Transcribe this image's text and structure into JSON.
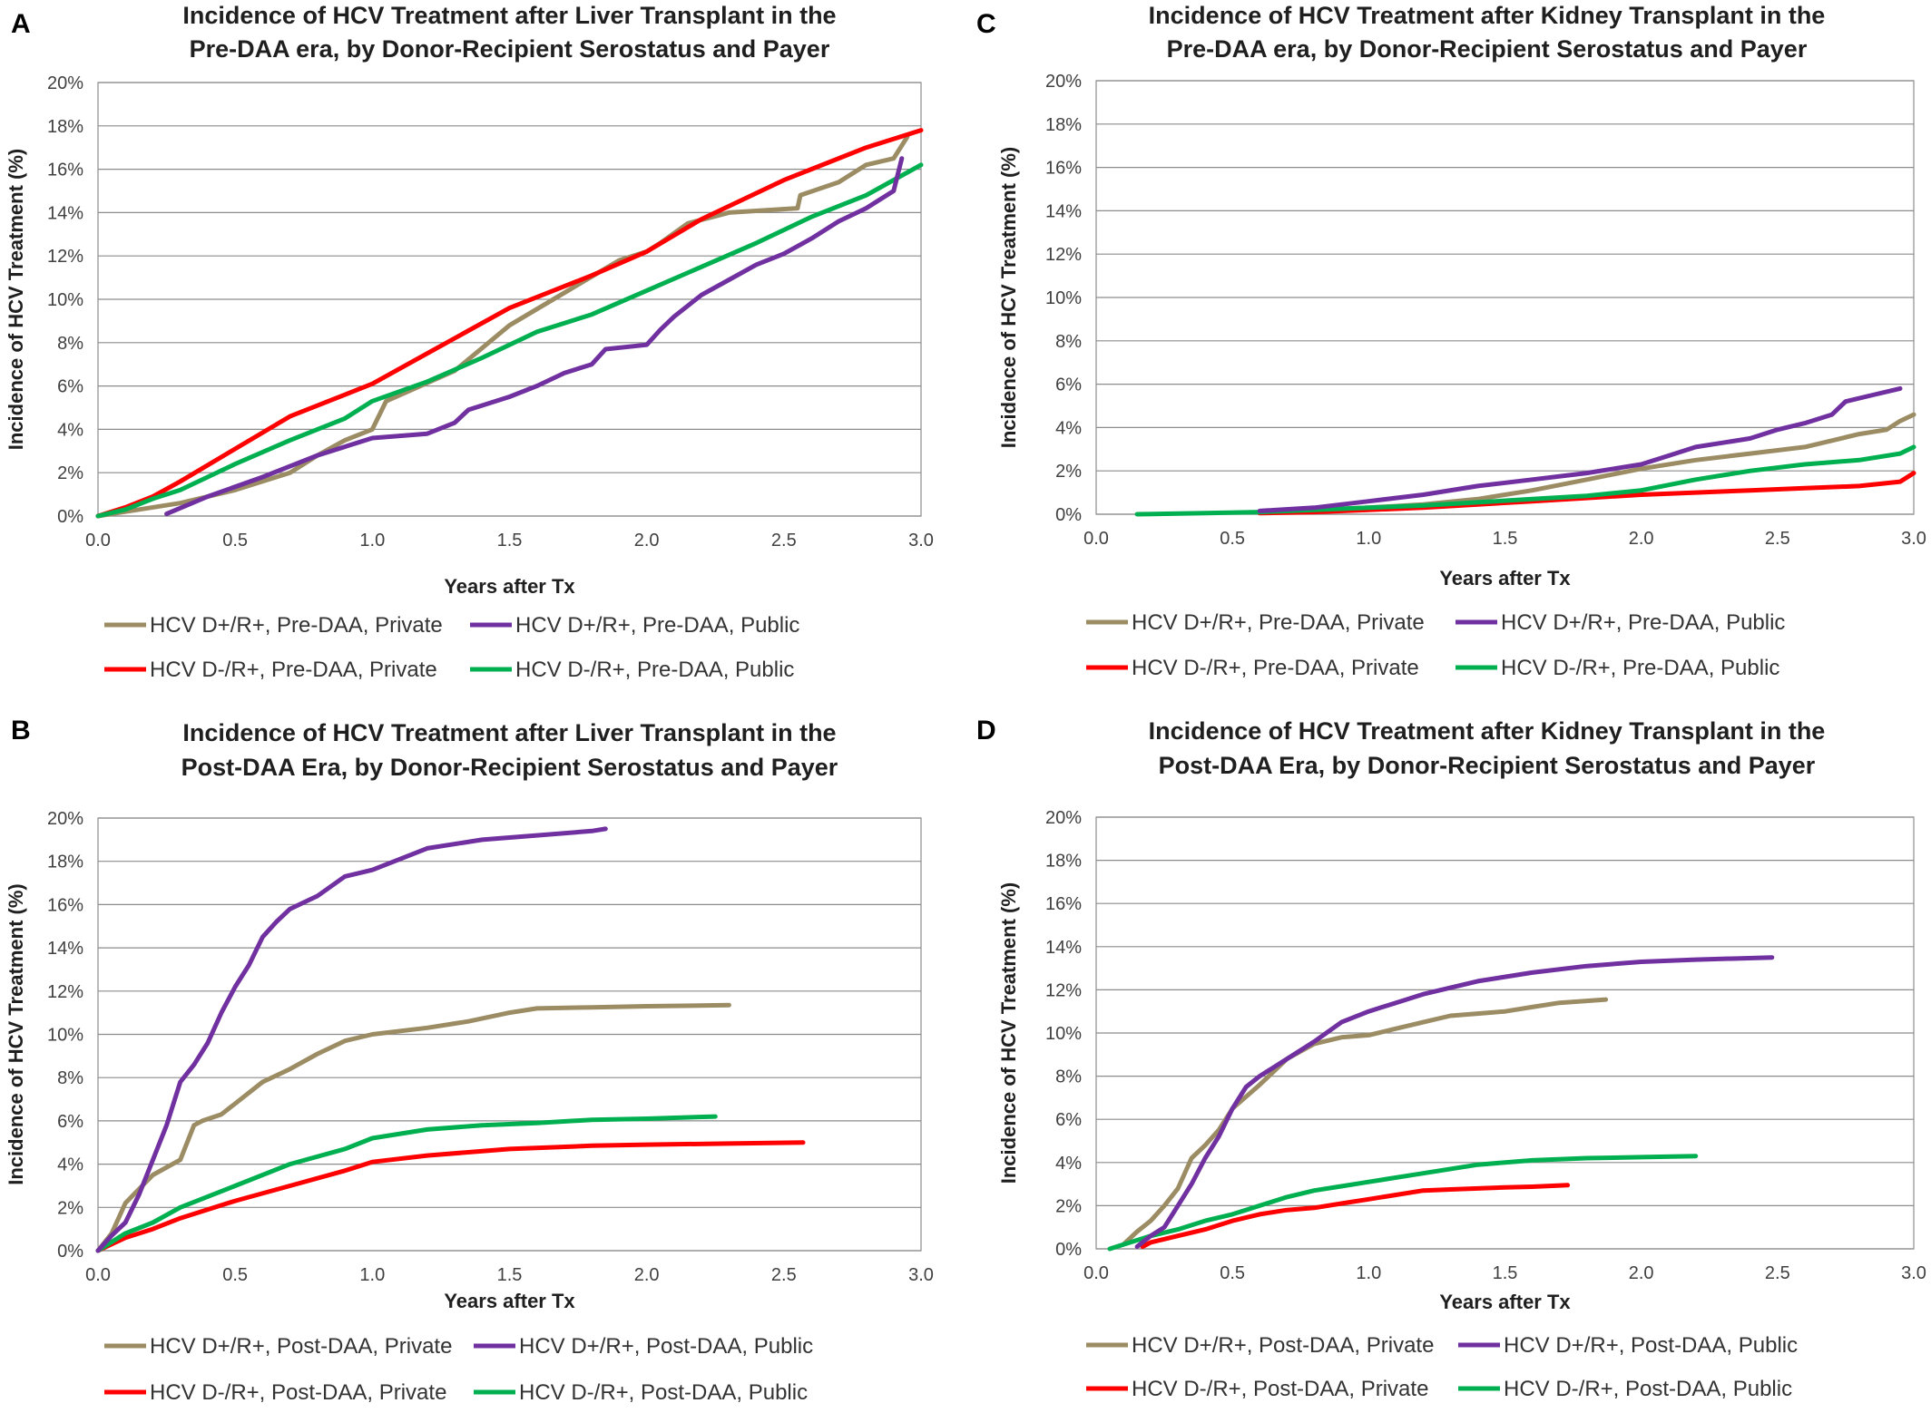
{
  "colors": {
    "tan": "#9b8c64",
    "purple": "#7030a0",
    "red": "#ff0000",
    "green": "#00b050"
  },
  "chart_data": [
    {
      "panel": "A",
      "type": "line",
      "title": [
        "Incidence of HCV Treatment after Liver Transplant in the",
        "Pre-DAA era, by Donor-Recipient Serostatus and Payer"
      ],
      "xlabel": "Years after Tx",
      "ylabel": "Incidence of HCV Treatment (%)",
      "xlim": [
        0,
        3
      ],
      "ylim": [
        0,
        20
      ],
      "xticks": [
        "0.0",
        "0.5",
        "1.0",
        "1.5",
        "2.0",
        "2.5",
        "3.0"
      ],
      "yticks": [
        "0%",
        "2%",
        "4%",
        "6%",
        "8%",
        "10%",
        "12%",
        "14%",
        "16%",
        "18%",
        "20%"
      ],
      "grid": true,
      "legend_position": "bottom",
      "series": [
        {
          "name": "HCV D+/R+, Pre-DAA, Private",
          "color": "tan",
          "x": [
            0,
            0.1,
            0.3,
            0.5,
            0.7,
            0.8,
            0.9,
            1.0,
            1.05,
            1.3,
            1.5,
            1.7,
            1.9,
            2.0,
            2.05,
            2.15,
            2.3,
            2.55,
            2.56,
            2.7,
            2.8,
            2.9,
            2.95
          ],
          "y": [
            0,
            0.2,
            0.6,
            1.2,
            2.0,
            2.8,
            3.5,
            4.0,
            5.3,
            6.7,
            8.8,
            10.3,
            11.8,
            12.2,
            12.6,
            13.5,
            14.0,
            14.2,
            14.8,
            15.4,
            16.2,
            16.5,
            17.5
          ]
        },
        {
          "name": "HCV D+/R+, Pre-DAA, Public",
          "color": "purple",
          "x": [
            0.25,
            0.4,
            0.6,
            0.8,
            1.0,
            1.2,
            1.3,
            1.35,
            1.5,
            1.6,
            1.7,
            1.8,
            1.85,
            2.0,
            2.05,
            2.1,
            2.2,
            2.3,
            2.4,
            2.5,
            2.6,
            2.7,
            2.8,
            2.9,
            2.93
          ],
          "y": [
            0.1,
            0.9,
            1.8,
            2.8,
            3.6,
            3.8,
            4.3,
            4.9,
            5.5,
            6.0,
            6.6,
            7.0,
            7.7,
            7.9,
            8.6,
            9.2,
            10.2,
            10.9,
            11.6,
            12.1,
            12.8,
            13.6,
            14.2,
            15.0,
            16.5
          ]
        },
        {
          "name": "HCV D-/R+, Pre-DAA, Private",
          "color": "red",
          "x": [
            0,
            0.1,
            0.2,
            0.3,
            0.5,
            0.7,
            1.0,
            1.3,
            1.5,
            1.8,
            2.0,
            2.2,
            2.5,
            2.8,
            3.0
          ],
          "y": [
            0,
            0.4,
            0.9,
            1.6,
            3.1,
            4.6,
            6.1,
            8.2,
            9.6,
            11.1,
            12.2,
            13.7,
            15.5,
            17.0,
            17.8
          ]
        },
        {
          "name": "HCV D-/R+, Pre-DAA, Public",
          "color": "green",
          "x": [
            0,
            0.1,
            0.2,
            0.3,
            0.5,
            0.7,
            0.9,
            1.0,
            1.2,
            1.4,
            1.6,
            1.8,
            2.0,
            2.2,
            2.4,
            2.6,
            2.8,
            3.0
          ],
          "y": [
            0,
            0.3,
            0.8,
            1.2,
            2.4,
            3.5,
            4.5,
            5.3,
            6.2,
            7.3,
            8.5,
            9.3,
            10.4,
            11.5,
            12.6,
            13.8,
            14.8,
            16.2
          ]
        }
      ]
    },
    {
      "panel": "B",
      "type": "line",
      "title": [
        "Incidence of HCV Treatment after Liver Transplant in the",
        "Post-DAA Era, by Donor-Recipient Serostatus and Payer"
      ],
      "xlabel": "Years after Tx",
      "ylabel": "Incidence of HCV Treatment (%)",
      "xlim": [
        0,
        3
      ],
      "ylim": [
        0,
        20
      ],
      "xticks": [
        "0.0",
        "0.5",
        "1.0",
        "1.5",
        "2.0",
        "2.5",
        "3.0"
      ],
      "yticks": [
        "0%",
        "2%",
        "4%",
        "6%",
        "8%",
        "10%",
        "12%",
        "14%",
        "16%",
        "18%",
        "20%"
      ],
      "grid": true,
      "legend_position": "bottom",
      "series": [
        {
          "name": "HCV D+/R+, Post-DAA, Private",
          "color": "tan",
          "x": [
            0,
            0.05,
            0.1,
            0.2,
            0.3,
            0.35,
            0.38,
            0.45,
            0.5,
            0.6,
            0.7,
            0.8,
            0.9,
            1.0,
            1.2,
            1.35,
            1.5,
            1.6,
            1.8,
            2.0,
            2.3
          ],
          "y": [
            0,
            0.8,
            2.2,
            3.5,
            4.2,
            5.8,
            6.0,
            6.3,
            6.8,
            7.8,
            8.4,
            9.1,
            9.7,
            10.0,
            10.3,
            10.6,
            11.0,
            11.2,
            11.25,
            11.3,
            11.35
          ]
        },
        {
          "name": "HCV D+/R+, Post-DAA, Public",
          "color": "purple",
          "x": [
            0,
            0.05,
            0.1,
            0.15,
            0.2,
            0.25,
            0.3,
            0.35,
            0.4,
            0.45,
            0.5,
            0.55,
            0.6,
            0.65,
            0.7,
            0.8,
            0.9,
            1.0,
            1.1,
            1.2,
            1.4,
            1.6,
            1.8,
            1.85
          ],
          "y": [
            0,
            0.7,
            1.3,
            2.6,
            4.2,
            5.8,
            7.8,
            8.6,
            9.6,
            11.0,
            12.2,
            13.2,
            14.5,
            15.2,
            15.8,
            16.4,
            17.3,
            17.6,
            18.1,
            18.6,
            19.0,
            19.2,
            19.4,
            19.5
          ]
        },
        {
          "name": "HCV D-/R+, Post-DAA, Private",
          "color": "red",
          "x": [
            0,
            0.1,
            0.2,
            0.3,
            0.5,
            0.7,
            0.9,
            1.0,
            1.2,
            1.5,
            1.8,
            2.0,
            2.3,
            2.57
          ],
          "y": [
            0,
            0.6,
            1.0,
            1.5,
            2.3,
            3.0,
            3.7,
            4.1,
            4.4,
            4.7,
            4.85,
            4.9,
            4.95,
            5.0
          ]
        },
        {
          "name": "HCV D-/R+, Post-DAA, Public",
          "color": "green",
          "x": [
            0,
            0.1,
            0.2,
            0.3,
            0.5,
            0.7,
            0.9,
            1.0,
            1.2,
            1.4,
            1.6,
            1.8,
            2.0,
            2.25
          ],
          "y": [
            0,
            0.8,
            1.3,
            2.0,
            3.0,
            4.0,
            4.7,
            5.2,
            5.6,
            5.8,
            5.9,
            6.05,
            6.1,
            6.2
          ]
        }
      ]
    },
    {
      "panel": "C",
      "type": "line",
      "title": [
        "Incidence of HCV Treatment after Kidney Transplant in the",
        "Pre-DAA era, by Donor-Recipient Serostatus and Payer"
      ],
      "xlabel": "Years after Tx",
      "ylabel": "Incidence of HCV Treatment (%)",
      "xlim": [
        0,
        3
      ],
      "ylim": [
        0,
        20
      ],
      "xticks": [
        "0.0",
        "0.5",
        "1.0",
        "1.5",
        "2.0",
        "2.5",
        "3.0"
      ],
      "yticks": [
        "0%",
        "2%",
        "4%",
        "6%",
        "8%",
        "10%",
        "12%",
        "14%",
        "16%",
        "18%",
        "20%"
      ],
      "grid": true,
      "legend_position": "bottom",
      "series": [
        {
          "name": "HCV D+/R+, Pre-DAA, Private",
          "color": "tan",
          "x": [
            0.6,
            0.8,
            1.0,
            1.2,
            1.4,
            1.6,
            1.8,
            2.0,
            2.2,
            2.4,
            2.6,
            2.8,
            2.9,
            2.95,
            3.0
          ],
          "y": [
            0.1,
            0.2,
            0.3,
            0.45,
            0.7,
            1.1,
            1.6,
            2.1,
            2.5,
            2.8,
            3.1,
            3.7,
            3.9,
            4.3,
            4.6
          ]
        },
        {
          "name": "HCV D+/R+, Pre-DAA, Public",
          "color": "purple",
          "x": [
            0.6,
            0.8,
            1.0,
            1.2,
            1.4,
            1.6,
            1.8,
            2.0,
            2.1,
            2.2,
            2.4,
            2.5,
            2.6,
            2.7,
            2.75,
            2.85,
            2.95
          ],
          "y": [
            0.15,
            0.3,
            0.6,
            0.9,
            1.3,
            1.6,
            1.9,
            2.3,
            2.7,
            3.1,
            3.5,
            3.9,
            4.2,
            4.6,
            5.2,
            5.5,
            5.8
          ]
        },
        {
          "name": "HCV D-/R+, Pre-DAA, Private",
          "color": "red",
          "x": [
            0.6,
            0.8,
            1.0,
            1.2,
            1.4,
            1.6,
            1.8,
            2.0,
            2.2,
            2.4,
            2.6,
            2.8,
            2.95,
            3.0
          ],
          "y": [
            0.05,
            0.1,
            0.2,
            0.3,
            0.45,
            0.6,
            0.75,
            0.9,
            1.0,
            1.1,
            1.2,
            1.3,
            1.5,
            1.9
          ]
        },
        {
          "name": "HCV D-/R+, Pre-DAA, Public",
          "color": "green",
          "x": [
            0.15,
            0.4,
            0.6,
            0.8,
            1.0,
            1.2,
            1.4,
            1.6,
            1.8,
            2.0,
            2.2,
            2.4,
            2.6,
            2.8,
            2.95,
            3.0
          ],
          "y": [
            0,
            0.05,
            0.1,
            0.2,
            0.3,
            0.4,
            0.55,
            0.7,
            0.85,
            1.1,
            1.6,
            2.0,
            2.3,
            2.5,
            2.8,
            3.1
          ]
        }
      ]
    },
    {
      "panel": "D",
      "type": "line",
      "title": [
        "Incidence of HCV Treatment after Kidney Transplant in the",
        "Post-DAA Era, by Donor-Recipient Serostatus and Payer"
      ],
      "xlabel": "Years after Tx",
      "ylabel": "Incidence of HCV Treatment (%)",
      "xlim": [
        0,
        3
      ],
      "ylim": [
        0,
        20
      ],
      "xticks": [
        "0.0",
        "0.5",
        "1.0",
        "1.5",
        "2.0",
        "2.5",
        "3.0"
      ],
      "yticks": [
        "0%",
        "2%",
        "4%",
        "6%",
        "8%",
        "10%",
        "12%",
        "14%",
        "16%",
        "18%",
        "20%"
      ],
      "grid": true,
      "legend_position": "bottom",
      "series": [
        {
          "name": "HCV D+/R+, Post-DAA, Private",
          "color": "tan",
          "x": [
            0.1,
            0.15,
            0.2,
            0.25,
            0.3,
            0.35,
            0.4,
            0.45,
            0.5,
            0.6,
            0.7,
            0.8,
            0.9,
            1.0,
            1.1,
            1.2,
            1.3,
            1.4,
            1.5,
            1.6,
            1.7,
            1.87
          ],
          "y": [
            0.2,
            0.8,
            1.3,
            2.0,
            2.8,
            4.2,
            4.8,
            5.5,
            6.5,
            7.6,
            8.8,
            9.5,
            9.8,
            9.9,
            10.2,
            10.5,
            10.8,
            10.9,
            11.0,
            11.2,
            11.4,
            11.55
          ]
        },
        {
          "name": "HCV D+/R+, Post-DAA, Public",
          "color": "purple",
          "x": [
            0.15,
            0.2,
            0.25,
            0.3,
            0.35,
            0.4,
            0.45,
            0.5,
            0.55,
            0.6,
            0.7,
            0.8,
            0.9,
            1.0,
            1.1,
            1.2,
            1.4,
            1.6,
            1.8,
            2.0,
            2.2,
            2.48
          ],
          "y": [
            0.1,
            0.6,
            1.0,
            2.0,
            3.0,
            4.2,
            5.2,
            6.5,
            7.5,
            8.0,
            8.8,
            9.6,
            10.5,
            11.0,
            11.4,
            11.8,
            12.4,
            12.8,
            13.1,
            13.3,
            13.4,
            13.5
          ]
        },
        {
          "name": "HCV D-/R+, Post-DAA, Private",
          "color": "red",
          "x": [
            0.17,
            0.2,
            0.3,
            0.4,
            0.5,
            0.6,
            0.7,
            0.8,
            0.9,
            1.0,
            1.1,
            1.2,
            1.3,
            1.4,
            1.5,
            1.6,
            1.73
          ],
          "y": [
            0.1,
            0.3,
            0.6,
            0.9,
            1.3,
            1.6,
            1.8,
            1.9,
            2.1,
            2.3,
            2.5,
            2.7,
            2.75,
            2.8,
            2.85,
            2.88,
            2.95
          ]
        },
        {
          "name": "HCV D-/R+, Post-DAA, Public",
          "color": "green",
          "x": [
            0.05,
            0.1,
            0.2,
            0.3,
            0.4,
            0.5,
            0.6,
            0.7,
            0.8,
            0.9,
            1.0,
            1.2,
            1.4,
            1.6,
            1.8,
            2.0,
            2.2
          ],
          "y": [
            0,
            0.2,
            0.6,
            0.9,
            1.3,
            1.6,
            2.0,
            2.4,
            2.7,
            2.9,
            3.1,
            3.5,
            3.9,
            4.1,
            4.2,
            4.25,
            4.3
          ]
        }
      ]
    }
  ]
}
